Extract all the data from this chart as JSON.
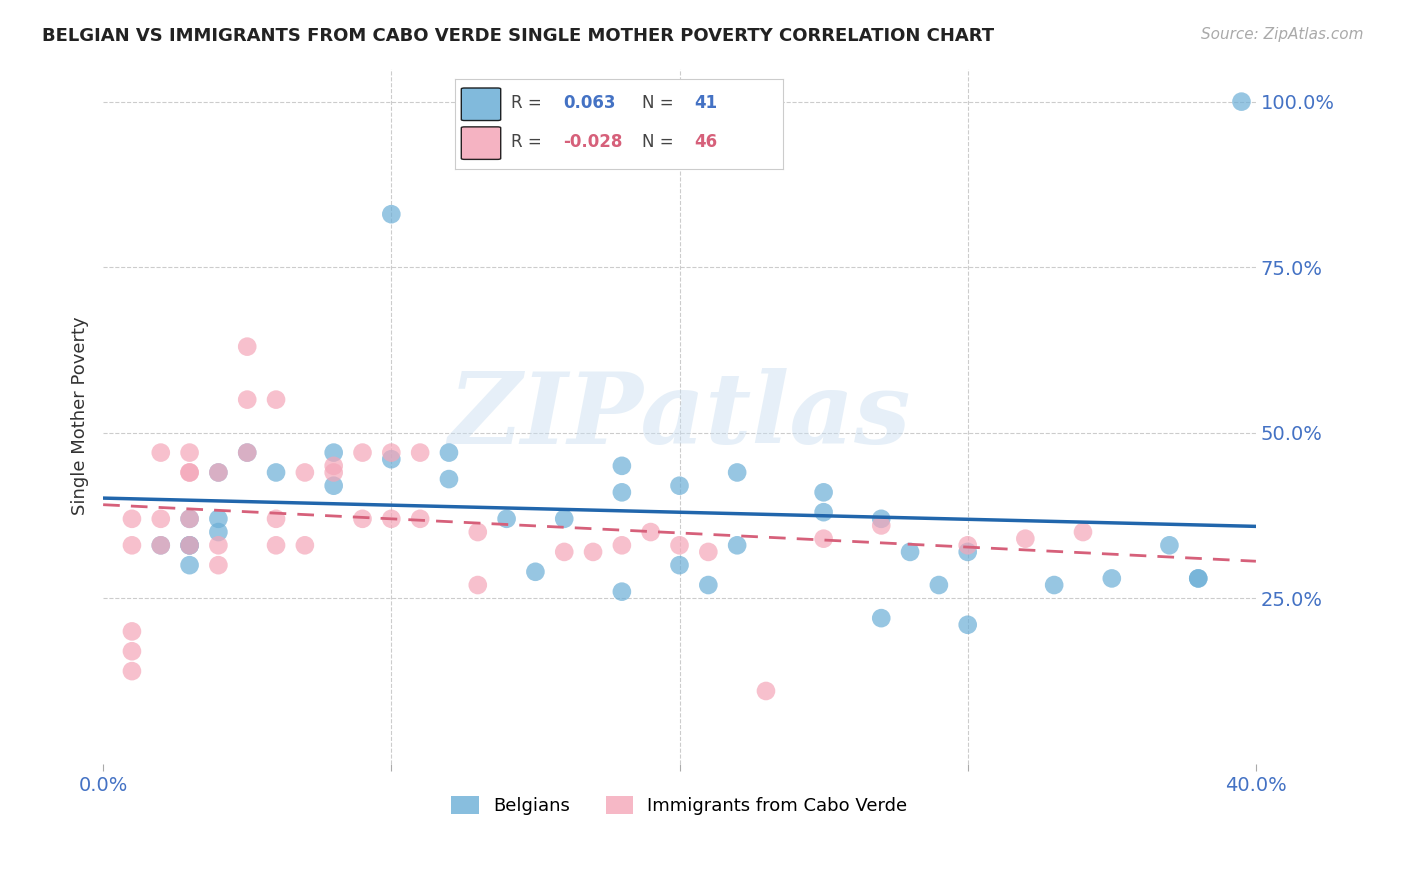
{
  "title": "BELGIAN VS IMMIGRANTS FROM CABO VERDE SINGLE MOTHER POVERTY CORRELATION CHART",
  "source": "Source: ZipAtlas.com",
  "ylabel": "Single Mother Poverty",
  "right_yticks": [
    "100.0%",
    "75.0%",
    "50.0%",
    "25.0%"
  ],
  "right_ytick_vals": [
    1.0,
    0.75,
    0.5,
    0.25
  ],
  "xlim": [
    0.0,
    0.4
  ],
  "ylim": [
    0.0,
    1.05
  ],
  "legend_r_blue": "0.063",
  "legend_n_blue": "41",
  "legend_r_pink": "-0.028",
  "legend_n_pink": "46",
  "blue_color": "#6baed6",
  "pink_color": "#f4a6b8",
  "blue_line_color": "#2166ac",
  "pink_line_color": "#d6607a",
  "watermark": "ZIPatlas",
  "blue_scatter_x": [
    0.02,
    0.1,
    0.05,
    0.06,
    0.04,
    0.04,
    0.03,
    0.03,
    0.03,
    0.03,
    0.04,
    0.08,
    0.1,
    0.08,
    0.12,
    0.12,
    0.14,
    0.16,
    0.18,
    0.15,
    0.18,
    0.2,
    0.22,
    0.2,
    0.25,
    0.27,
    0.3,
    0.28,
    0.25,
    0.35,
    0.38,
    0.29,
    0.33,
    0.37,
    0.38,
    0.3,
    0.27,
    0.22,
    0.21,
    0.18,
    0.395
  ],
  "blue_scatter_y": [
    0.33,
    0.83,
    0.47,
    0.44,
    0.44,
    0.37,
    0.37,
    0.33,
    0.33,
    0.3,
    0.35,
    0.47,
    0.46,
    0.42,
    0.47,
    0.43,
    0.37,
    0.37,
    0.41,
    0.29,
    0.45,
    0.42,
    0.44,
    0.3,
    0.41,
    0.37,
    0.32,
    0.32,
    0.38,
    0.28,
    0.28,
    0.27,
    0.27,
    0.33,
    0.28,
    0.21,
    0.22,
    0.33,
    0.27,
    0.26,
    1.0
  ],
  "pink_scatter_x": [
    0.01,
    0.01,
    0.01,
    0.01,
    0.01,
    0.02,
    0.02,
    0.02,
    0.03,
    0.03,
    0.03,
    0.03,
    0.03,
    0.04,
    0.04,
    0.04,
    0.05,
    0.05,
    0.05,
    0.06,
    0.06,
    0.06,
    0.07,
    0.07,
    0.08,
    0.08,
    0.09,
    0.09,
    0.1,
    0.1,
    0.11,
    0.11,
    0.13,
    0.13,
    0.16,
    0.17,
    0.18,
    0.19,
    0.2,
    0.21,
    0.23,
    0.25,
    0.27,
    0.3,
    0.32,
    0.34
  ],
  "pink_scatter_y": [
    0.33,
    0.37,
    0.2,
    0.17,
    0.14,
    0.33,
    0.37,
    0.47,
    0.44,
    0.44,
    0.37,
    0.47,
    0.33,
    0.44,
    0.33,
    0.3,
    0.47,
    0.55,
    0.63,
    0.55,
    0.37,
    0.33,
    0.44,
    0.33,
    0.45,
    0.44,
    0.47,
    0.37,
    0.47,
    0.37,
    0.47,
    0.37,
    0.27,
    0.35,
    0.32,
    0.32,
    0.33,
    0.35,
    0.33,
    0.32,
    0.11,
    0.34,
    0.36,
    0.33,
    0.34,
    0.35
  ],
  "legend_blue_label": "Belgians",
  "legend_pink_label": "Immigrants from Cabo Verde"
}
